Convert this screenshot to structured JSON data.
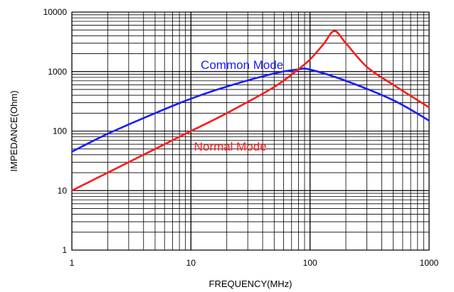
{
  "chart_data": {
    "type": "line",
    "xlabel": "FREQUENCY(MHz)",
    "ylabel": "IMPEDANCE(Ohm)",
    "x_scale": "log",
    "y_scale": "log",
    "xlim": [
      1,
      1000
    ],
    "ylim": [
      1,
      10000
    ],
    "grid": true,
    "x_ticks": [
      1,
      10,
      100,
      1000
    ],
    "x_tick_labels": [
      "1",
      "10",
      "100",
      "1000"
    ],
    "y_ticks": [
      1,
      10,
      100,
      1000,
      10000
    ],
    "y_tick_labels": [
      "1",
      "10",
      "100",
      "1000",
      "10000"
    ],
    "series": [
      {
        "name": "Common Mode",
        "color": "#1a1aff",
        "x": [
          1,
          2,
          5,
          10,
          20,
          50,
          80,
          100,
          200,
          500,
          1000
        ],
        "y": [
          45,
          90,
          200,
          350,
          560,
          930,
          1090,
          1080,
          700,
          330,
          150
        ]
      },
      {
        "name": "Normal Mode",
        "color": "#ff1a1a",
        "x": [
          1,
          2,
          5,
          10,
          20,
          50,
          80,
          100,
          130,
          160,
          200,
          300,
          500,
          1000
        ],
        "y": [
          10,
          20,
          50,
          100,
          200,
          550,
          1100,
          1600,
          2900,
          4800,
          3000,
          1200,
          600,
          250
        ]
      }
    ]
  }
}
